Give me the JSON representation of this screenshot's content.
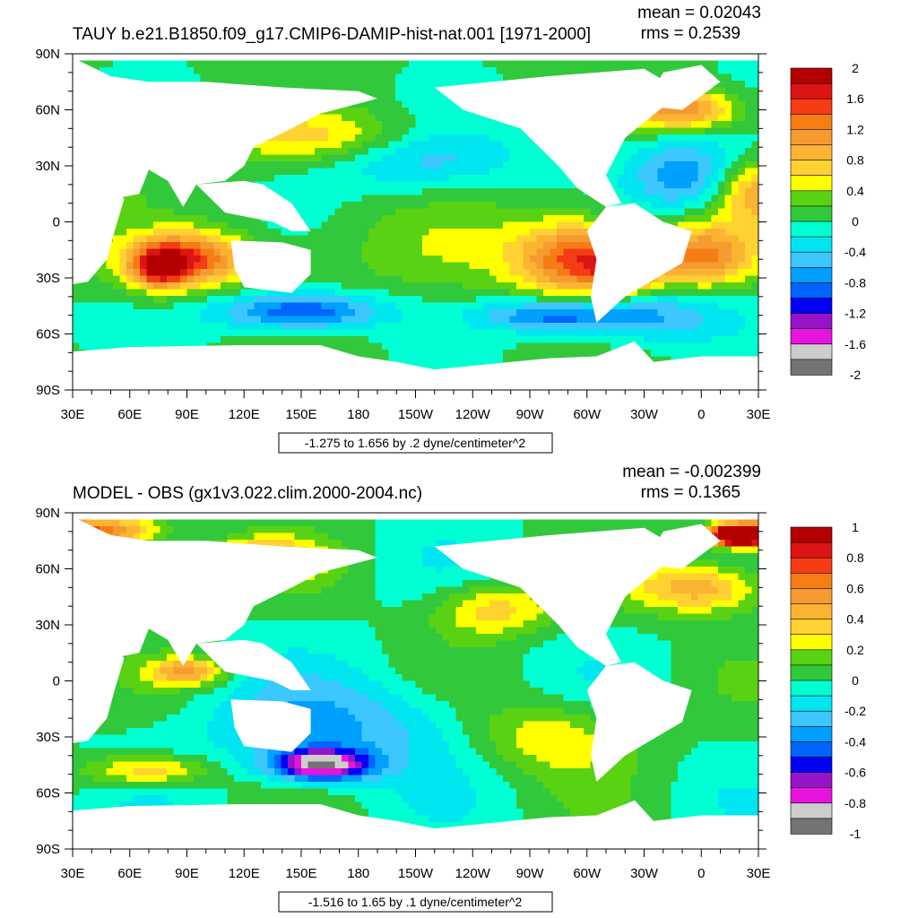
{
  "chart_data": [
    {
      "type": "heatmap",
      "title": "TAUY b.e21.B1850.f09_g17.CMIP6-DAMIP-hist-nat.001 [1971-2000]",
      "stats": {
        "mean": "mean = 0.02043",
        "rms": "rms = 0.2539"
      },
      "subtitle": "-1.275 to 1.656 by .2 dyne/centimeter^2",
      "x_tick_labels": [
        "30E",
        "60E",
        "90E",
        "120E",
        "150E",
        "180",
        "150W",
        "120W",
        "90W",
        "60W",
        "30W",
        "0",
        "30E"
      ],
      "y_tick_labels": [
        "90N",
        "60N",
        "30N",
        "0",
        "30S",
        "60S",
        "90S"
      ],
      "xlim": [
        "30E",
        "30E"
      ],
      "ylim": [
        "90S",
        "90N"
      ],
      "colorbar": {
        "labels": [
          "2",
          "1.6",
          "1.2",
          "0.8",
          "0.4",
          "0",
          "-0.4",
          "-0.8",
          "-1.2",
          "-1.6",
          "-2"
        ],
        "colors": [
          "#b40000",
          "#dc1414",
          "#f53c14",
          "#f57d14",
          "#f59b32",
          "#fab432",
          "#ffd232",
          "#ffff00",
          "#5ad214",
          "#32c83c",
          "#00ffd2",
          "#00e6f0",
          "#3cc8ff",
          "#00a0ff",
          "#0064ff",
          "#0000f5",
          "#9614c8",
          "#e614dc",
          "#cdcdcd",
          "#737373"
        ]
      }
    },
    {
      "type": "heatmap",
      "title": "MODEL - OBS (gx1v3.022.clim.2000-2004.nc)",
      "stats": {
        "mean": "mean = -0.002399",
        "rms": "rms = 0.1365"
      },
      "subtitle": "-1.516 to 1.65 by .1 dyne/centimeter^2",
      "x_tick_labels": [
        "30E",
        "60E",
        "90E",
        "120E",
        "150E",
        "180",
        "150W",
        "120W",
        "90W",
        "60W",
        "30W",
        "0",
        "30E"
      ],
      "y_tick_labels": [
        "90N",
        "60N",
        "30N",
        "0",
        "30S",
        "60S",
        "90S"
      ],
      "xlim": [
        "30E",
        "30E"
      ],
      "ylim": [
        "90S",
        "90N"
      ],
      "colorbar": {
        "labels": [
          "1",
          "0.8",
          "0.6",
          "0.4",
          "0.2",
          "0",
          "-0.2",
          "-0.4",
          "-0.6",
          "-0.8",
          "-1"
        ],
        "colors": [
          "#b40000",
          "#dc1414",
          "#f53c14",
          "#f57d14",
          "#f59b32",
          "#fab432",
          "#ffd232",
          "#ffff00",
          "#5ad214",
          "#32c83c",
          "#00ffd2",
          "#00e6f0",
          "#3cc8ff",
          "#00a0ff",
          "#0064ff",
          "#0000f5",
          "#9614c8",
          "#e614dc",
          "#cdcdcd",
          "#737373"
        ]
      }
    }
  ]
}
